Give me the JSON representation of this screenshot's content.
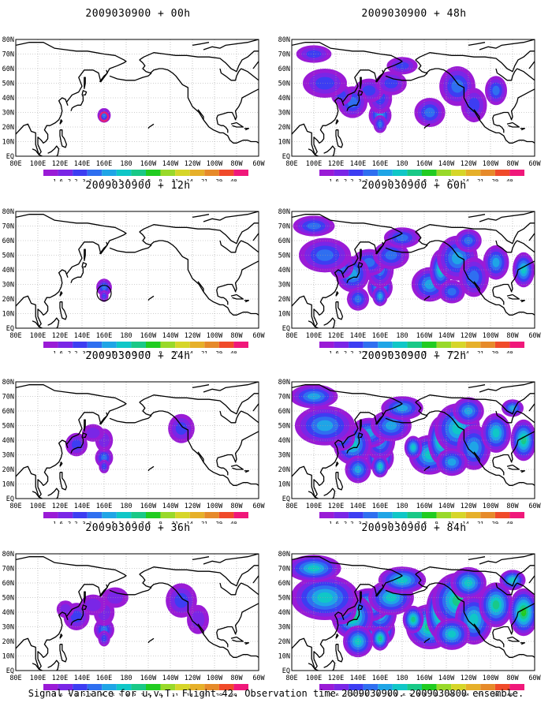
{
  "panels": [
    {
      "title": "2009030900 + 00h",
      "intensity": 0
    },
    {
      "title": "2009030900 + 12h",
      "intensity": 1
    },
    {
      "title": "2009030900 + 24h",
      "intensity": 2
    },
    {
      "title": "2009030900 + 36h",
      "intensity": 3
    },
    {
      "title": "2009030900 + 48h",
      "intensity": 4
    },
    {
      "title": "2009030900 + 60h",
      "intensity": 5
    },
    {
      "title": "2009030900 + 72h",
      "intensity": 6
    },
    {
      "title": "2009030900 + 84h",
      "intensity": 7
    }
  ],
  "lon_labels": [
    "80E",
    "100E",
    "120E",
    "140E",
    "160E",
    "180",
    "160W",
    "140W",
    "120W",
    "100W",
    "80W",
    "60W"
  ],
  "lat_labels": [
    "EQ",
    "10N",
    "20N",
    "30N",
    "40N",
    "50N",
    "60N",
    "70N",
    "80N"
  ],
  "colorbar": {
    "labels": [
      "1.6",
      "2.2",
      "3.1",
      "4",
      "5.1",
      "6.3",
      "7.5",
      "9",
      "11",
      "14",
      "21",
      "29",
      "40"
    ],
    "colors": [
      "#9a1bd6",
      "#7a26e6",
      "#3d3df2",
      "#2f6ff0",
      "#1fa5e6",
      "#10c7c7",
      "#19c987",
      "#21cc21",
      "#99d92a",
      "#d6d629",
      "#e6b02a",
      "#e68a2a",
      "#f04a2a",
      "#f0187a"
    ]
  },
  "footer": "Signal Variance for u,v,T. Flight 42. Observation time 2009030900. 2009030800 ensemble."
}
